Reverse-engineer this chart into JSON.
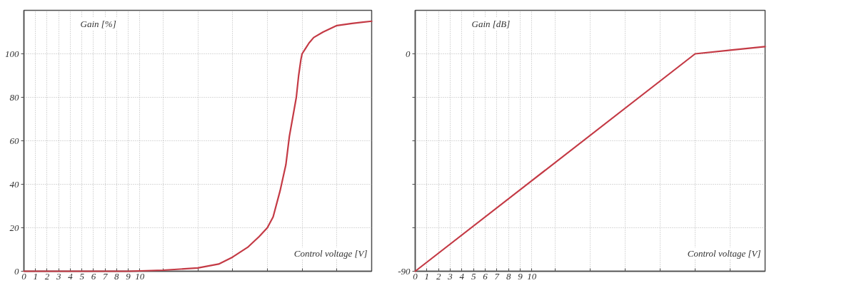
{
  "chart_data": [
    {
      "type": "line",
      "xlabel": "Control voltage [V]",
      "ylabel": "Gain [%]",
      "x": [
        0,
        3,
        6,
        9,
        12,
        15,
        16.8,
        18,
        19.3,
        20.3,
        21,
        21.5,
        22.1,
        22.6,
        22.9,
        23.2,
        23.5,
        23.7,
        23.9,
        24,
        24.3,
        24.6,
        25,
        25.8,
        27,
        28.3,
        30
      ],
      "series": [
        {
          "color": "#c43a45",
          "values": [
            0,
            0,
            0,
            0,
            0.5,
            1.5,
            3.3,
            6.5,
            11,
            16,
            20,
            25,
            37,
            49,
            62,
            71,
            80,
            90,
            97.5,
            100,
            102.5,
            105,
            107.5,
            110,
            113,
            114,
            115
          ]
        }
      ],
      "xlim": [
        0,
        30
      ],
      "xticks": [
        0,
        1,
        2,
        3,
        4,
        5,
        6,
        7,
        8,
        9,
        10,
        {
          "value": 12,
          "label": null
        },
        {
          "value": 15,
          "label": null
        },
        {
          "value": 18,
          "label": null
        },
        {
          "value": 21,
          "label": null
        },
        {
          "value": 24,
          "label": null
        },
        {
          "value": 27,
          "label": null
        },
        {
          "value": 30,
          "label": null
        }
      ],
      "ylim": [
        0,
        120
      ],
      "yticks": [
        0,
        20,
        40,
        60,
        80,
        100
      ],
      "grid": true,
      "line_style": "solid"
    },
    {
      "type": "line",
      "xlabel": "Control voltage [V]",
      "ylabel": "Gain [dB]",
      "x": [
        0,
        24,
        27,
        30
      ],
      "series": [
        {
          "color": "#c43a45",
          "values": [
            -90,
            0,
            1.5,
            3
          ]
        }
      ],
      "xlim": [
        0,
        30
      ],
      "xticks": [
        0,
        1,
        2,
        3,
        4,
        5,
        6,
        7,
        8,
        9,
        10,
        {
          "value": 12,
          "label": null
        },
        {
          "value": 15,
          "label": null
        },
        {
          "value": 18,
          "label": null
        },
        {
          "value": 21,
          "label": null
        },
        {
          "value": 24,
          "label": null
        },
        {
          "value": 27,
          "label": null
        },
        {
          "value": 30,
          "label": null
        }
      ],
      "ylim": [
        -90,
        18
      ],
      "yticks": [
        -90,
        {
          "value": -72,
          "label": null
        },
        {
          "value": -54,
          "label": null
        },
        {
          "value": -36,
          "label": null
        },
        {
          "value": -18,
          "label": null
        },
        0
      ],
      "grid": true,
      "line_style": "solid"
    }
  ]
}
